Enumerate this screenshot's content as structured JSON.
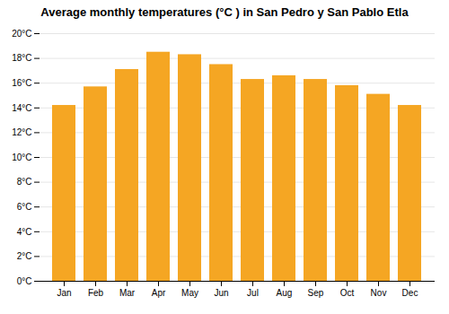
{
  "chart_data": {
    "type": "bar",
    "title": "Average monthly temperatures (°C ) in San Pedro y San Pablo Etla",
    "categories": [
      "Jan",
      "Feb",
      "Mar",
      "Apr",
      "May",
      "Jun",
      "Jul",
      "Aug",
      "Sep",
      "Oct",
      "Nov",
      "Dec"
    ],
    "values": [
      14.2,
      15.7,
      17.1,
      18.5,
      18.3,
      17.5,
      16.3,
      16.6,
      16.3,
      15.8,
      15.1,
      14.2
    ],
    "color": "#F5A623",
    "ylim": [
      0,
      20
    ],
    "yticks": [
      {
        "value": 0,
        "label": "0°C"
      },
      {
        "value": 2,
        "label": "2°C"
      },
      {
        "value": 4,
        "label": "4°C"
      },
      {
        "value": 6,
        "label": "6°C"
      },
      {
        "value": 8,
        "label": "8°C"
      },
      {
        "value": 10,
        "label": "10°C"
      },
      {
        "value": 12,
        "label": "12°C"
      },
      {
        "value": 14,
        "label": "14°C"
      },
      {
        "value": 16,
        "label": "16°C"
      },
      {
        "value": 18,
        "label": "18°C"
      },
      {
        "value": 20,
        "label": "20°C"
      }
    ],
    "grid": true
  }
}
